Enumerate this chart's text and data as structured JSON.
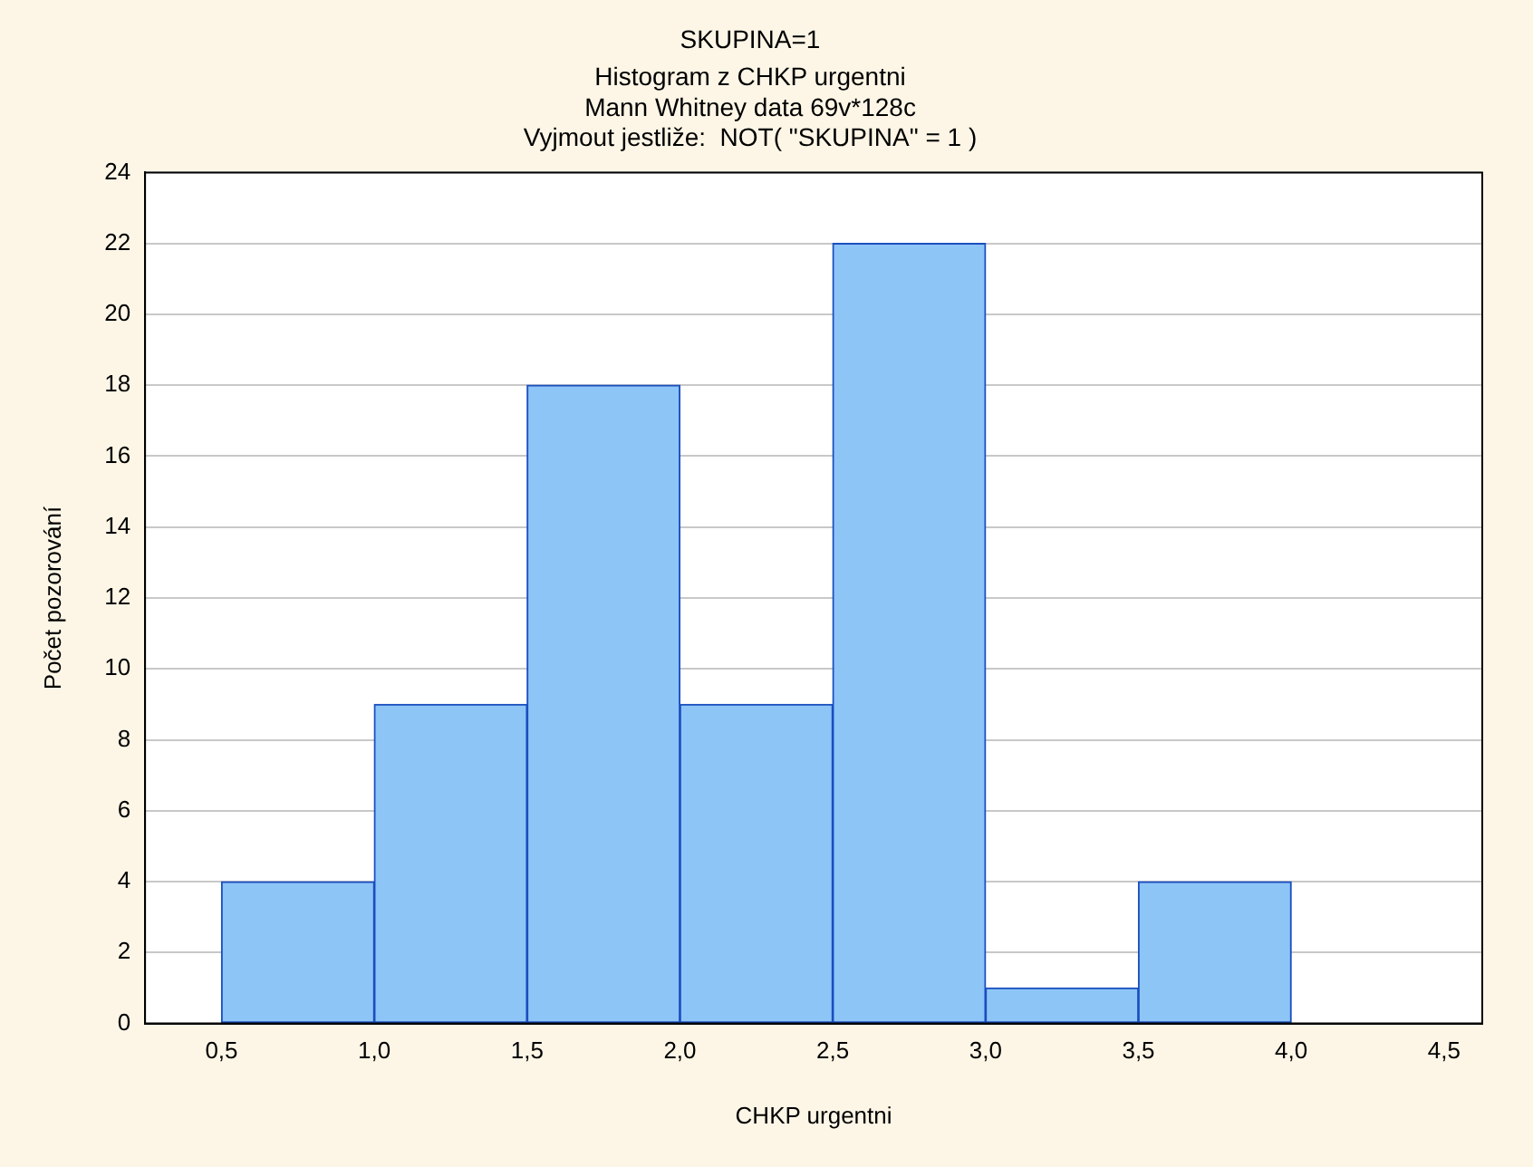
{
  "chart_data": {
    "type": "histogram",
    "title": "SKUPINA=1",
    "subtitle": "Histogram z CHKP urgentni",
    "annotations": [
      "Mann Whitney data 69v*128c",
      "Vyjmout jestliže:  NOT( \"SKUPINA\" = 1 )"
    ],
    "xlabel": "CHKP urgentni",
    "ylabel": "Počet pozorování",
    "bins": [
      0.5,
      1.0,
      1.5,
      2.0,
      2.5,
      3.0,
      3.5,
      4.0
    ],
    "values": [
      4,
      9,
      18,
      9,
      22,
      1,
      4
    ],
    "color": "#8ec5f7",
    "xlim": [
      0.25,
      4.625
    ],
    "xticks": [
      {
        "value": 0.5,
        "label": "0,5"
      },
      {
        "value": 1.0,
        "label": "1,0"
      },
      {
        "value": 1.5,
        "label": "1,5"
      },
      {
        "value": 2.0,
        "label": "2,0"
      },
      {
        "value": 2.5,
        "label": "2,5"
      },
      {
        "value": 3.0,
        "label": "3,0"
      },
      {
        "value": 3.5,
        "label": "3,5"
      },
      {
        "value": 4.0,
        "label": "4,0"
      },
      {
        "value": 4.5,
        "label": "4,5"
      }
    ],
    "ylim": [
      0,
      24
    ],
    "yticks": [
      0,
      2,
      4,
      6,
      8,
      10,
      12,
      14,
      16,
      18,
      20,
      22,
      24
    ],
    "grid": "y",
    "legend": false
  }
}
